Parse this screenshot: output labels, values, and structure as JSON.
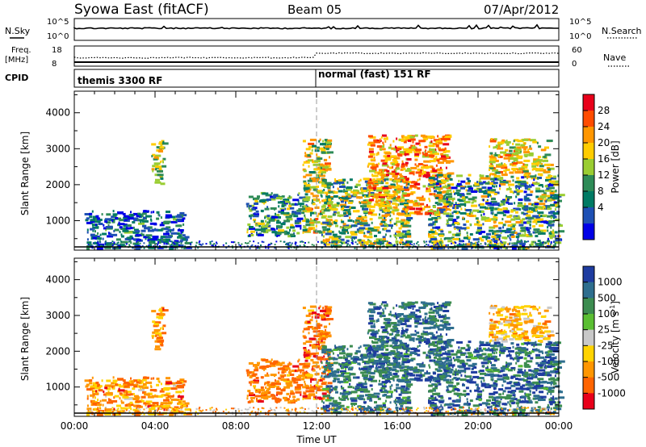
{
  "header": {
    "station": "Syowa East (fitACF)",
    "beam": "Beam 05",
    "date": "07/Apr/2012"
  },
  "aux_panels": {
    "nsky": {
      "label": "N.Sky",
      "ticks": [
        "10^5",
        "10^0"
      ]
    },
    "nsearch": {
      "label": "N.Search",
      "ticks": [
        "10^5",
        "10^0"
      ]
    },
    "freq": {
      "label": "Freq.",
      "unit": "[MHz]",
      "ticks": [
        "18",
        "8"
      ]
    },
    "nave": {
      "label": "Nave",
      "ticks": [
        "60",
        "0"
      ]
    },
    "cpid": {
      "label": "CPID",
      "modes": [
        {
          "start_hour": 0,
          "name": "themis 3300 RF"
        },
        {
          "start_hour": 12,
          "name": "normal (fast) 151 RF"
        }
      ]
    }
  },
  "chart_data": [
    {
      "type": "heatmap",
      "name": "power",
      "ylabel": "Slant Range [km]",
      "xlabel": "",
      "x_range_hours": [
        0,
        24
      ],
      "ylim": [
        180,
        4600
      ],
      "yticks": [
        1000,
        2000,
        3000,
        4000
      ],
      "xticks": [
        "00:00",
        "04:00",
        "08:00",
        "12:00",
        "16:00",
        "20:00",
        "00:00"
      ],
      "colorbar": {
        "label": "Power [dB]",
        "ticks": [
          "28",
          "24",
          "20",
          "16",
          "12",
          "8",
          "4"
        ],
        "colors": [
          "#e8001a",
          "#ff4c00",
          "#ff9600",
          "#ffcc00",
          "#9acd32",
          "#2e8b57",
          "#007a64",
          "#1e50b4",
          "#0000e6"
        ]
      },
      "regions": [
        {
          "t": [
            0.5,
            5.5
          ],
          "r": [
            250,
            1300
          ],
          "level": [
            0.55,
            1.0
          ]
        },
        {
          "t": [
            3.8,
            4.4
          ],
          "r": [
            2000,
            3300
          ],
          "level": [
            0.3,
            0.7
          ]
        },
        {
          "t": [
            8.5,
            11.5
          ],
          "r": [
            600,
            1800
          ],
          "level": [
            0.35,
            0.95
          ]
        },
        {
          "t": [
            11.3,
            12.6
          ],
          "r": [
            700,
            3300
          ],
          "level": [
            0.2,
            0.7
          ]
        },
        {
          "t": [
            12.2,
            16.5
          ],
          "r": [
            300,
            2200
          ],
          "level": [
            0.25,
            0.85
          ]
        },
        {
          "t": [
            14.5,
            18.5
          ],
          "r": [
            1200,
            3400
          ],
          "level": [
            0.05,
            0.5
          ]
        },
        {
          "t": [
            17.5,
            24.0
          ],
          "r": [
            250,
            2300
          ],
          "level": [
            0.3,
            0.95
          ]
        },
        {
          "t": [
            20.5,
            23.5
          ],
          "r": [
            2300,
            3300
          ],
          "level": [
            0.2,
            0.6
          ]
        }
      ]
    },
    {
      "type": "heatmap",
      "name": "velocity",
      "ylabel": "Slant Range [km]",
      "xlabel": "Time UT",
      "x_range_hours": [
        0,
        24
      ],
      "ylim": [
        180,
        4600
      ],
      "yticks": [
        1000,
        2000,
        3000,
        4000
      ],
      "xticks": [
        "00:00",
        "04:00",
        "08:00",
        "12:00",
        "16:00",
        "20:00",
        "00:00"
      ],
      "colorbar": {
        "label": "Velocity [m s^-1]",
        "ticks": [
          "1000",
          "500",
          "100",
          "25",
          "-25",
          "-100",
          "-500",
          "-1000"
        ],
        "colors": [
          "#1e3ca0",
          "#2e6e8e",
          "#3c8c50",
          "#5abe32",
          "#c8c8c8",
          "#ffd300",
          "#ff9600",
          "#ff6400",
          "#e8001a"
        ]
      },
      "regions": [
        {
          "t": [
            0.5,
            5.5
          ],
          "r": [
            250,
            1300
          ],
          "level": [
            0.55,
            0.9
          ]
        },
        {
          "t": [
            3.8,
            4.4
          ],
          "r": [
            2000,
            3300
          ],
          "level": [
            0.6,
            0.9
          ]
        },
        {
          "t": [
            8.5,
            11.5
          ],
          "r": [
            600,
            1800
          ],
          "level": [
            0.65,
            0.9
          ]
        },
        {
          "t": [
            11.3,
            12.6
          ],
          "r": [
            700,
            3300
          ],
          "level": [
            0.65,
            0.95
          ]
        },
        {
          "t": [
            12.2,
            16.5
          ],
          "r": [
            300,
            2200
          ],
          "level": [
            0.05,
            0.35
          ]
        },
        {
          "t": [
            14.5,
            18.5
          ],
          "r": [
            1200,
            3400
          ],
          "level": [
            0.05,
            0.3
          ]
        },
        {
          "t": [
            17.5,
            24.0
          ],
          "r": [
            250,
            2300
          ],
          "level": [
            0.0,
            0.35
          ]
        },
        {
          "t": [
            20.5,
            23.5
          ],
          "r": [
            2300,
            3300
          ],
          "level": [
            0.5,
            0.8
          ]
        }
      ]
    }
  ]
}
